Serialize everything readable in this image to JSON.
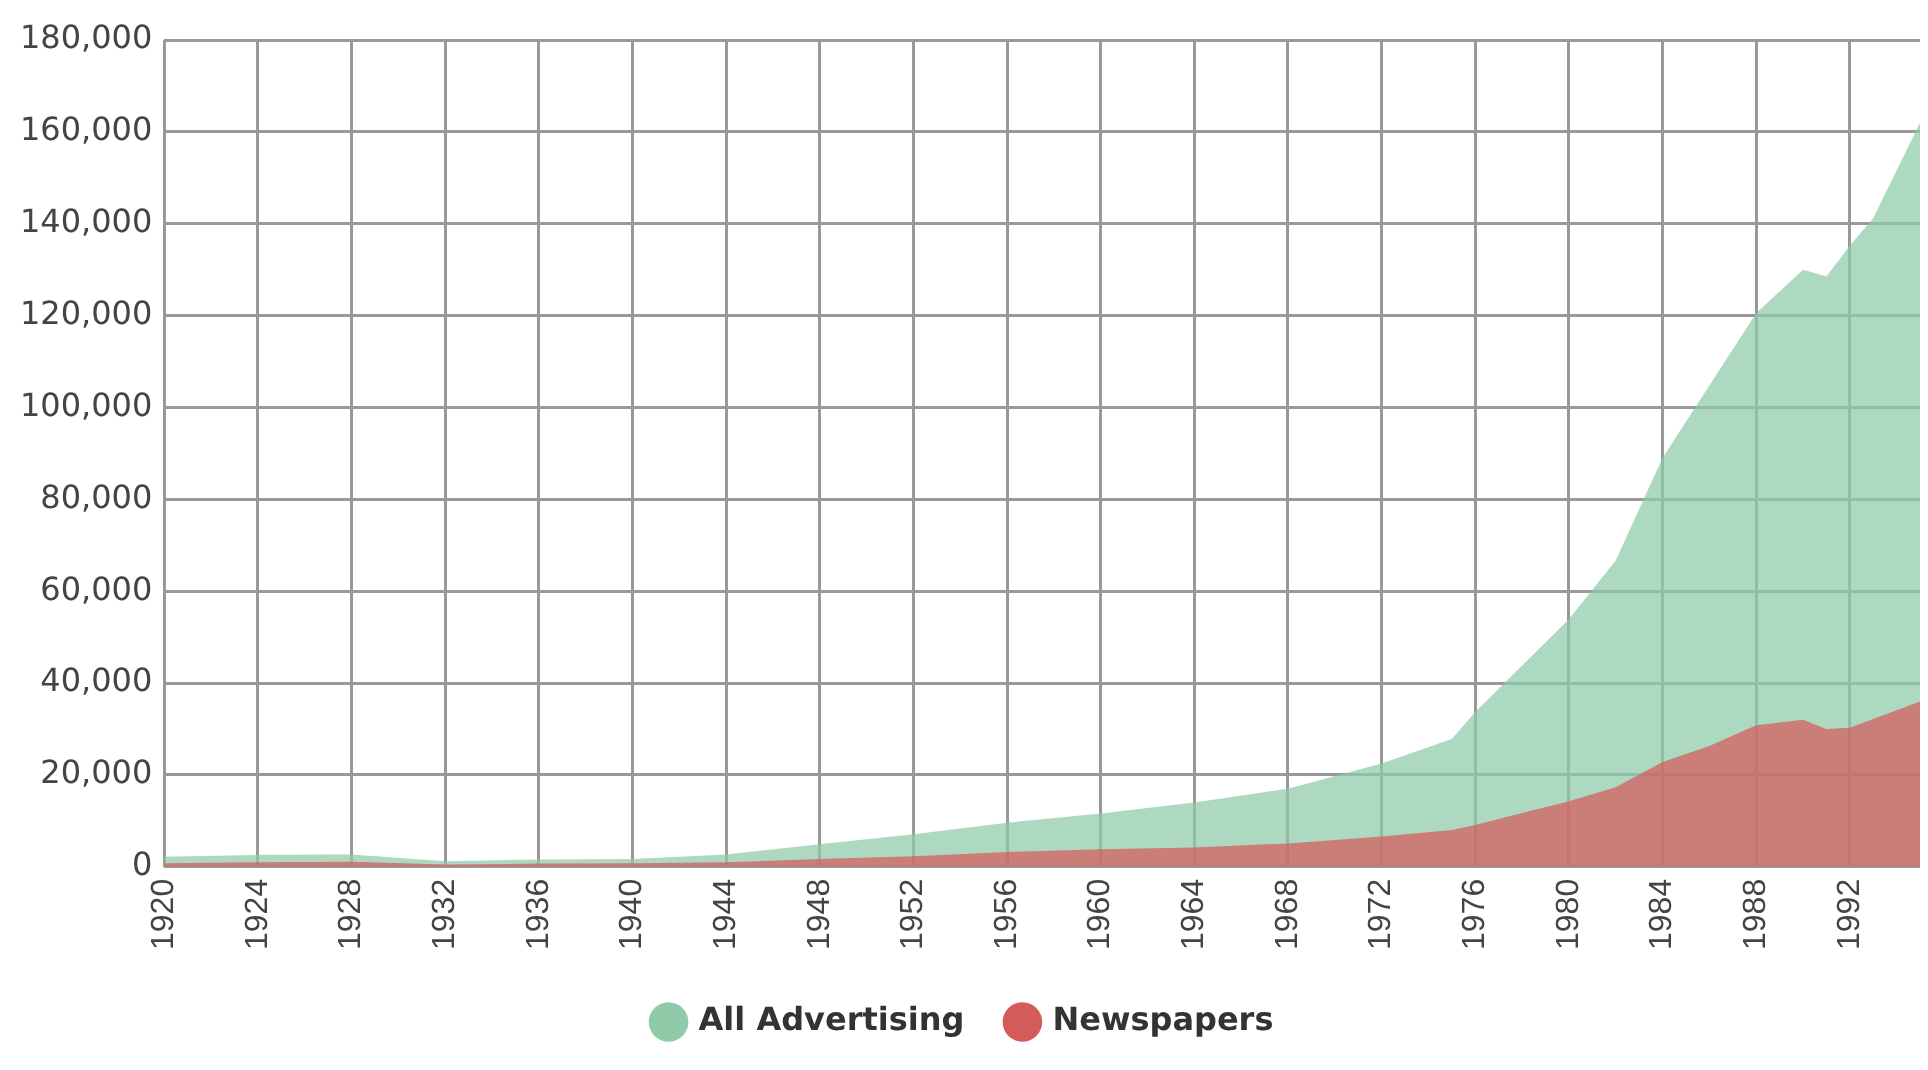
{
  "chart_data": {
    "type": "area",
    "legend": "bottom",
    "grid": true,
    "xlim": [
      1920,
      1995
    ],
    "xticks": [
      1920,
      1924,
      1928,
      1932,
      1936,
      1940,
      1944,
      1948,
      1952,
      1956,
      1960,
      1964,
      1968,
      1972,
      1976,
      1980,
      1984,
      1988,
      1992
    ],
    "ylim": [
      0,
      180000
    ],
    "yticks": [
      {
        "value": 0,
        "label": "0"
      },
      {
        "value": 20000,
        "label": "20,000"
      },
      {
        "value": 40000,
        "label": "40,000"
      },
      {
        "value": 60000,
        "label": "60,000"
      },
      {
        "value": 80000,
        "label": "80,000"
      },
      {
        "value": 100000,
        "label": "100,000"
      },
      {
        "value": 120000,
        "label": "120,000"
      },
      {
        "value": 140000,
        "label": "140,000"
      },
      {
        "value": 160000,
        "label": "160,000"
      },
      {
        "value": 180000,
        "label": "180,000"
      }
    ],
    "series": [
      {
        "name": "All Advertising",
        "color": "#8fcaa9",
        "x": [
          1920,
          1924,
          1928,
          1932,
          1936,
          1940,
          1944,
          1948,
          1952,
          1956,
          1960,
          1964,
          1968,
          1972,
          1975,
          1976,
          1980,
          1982,
          1984,
          1988,
          1990,
          1991,
          1992,
          1993,
          1995
        ],
        "values": [
          2200,
          2600,
          2700,
          1200,
          1600,
          1700,
          2700,
          4900,
          7100,
          9600,
          11600,
          14000,
          17000,
          22500,
          27800,
          33700,
          53900,
          66700,
          89000,
          120500,
          130000,
          128500,
          135200,
          141200,
          162000
        ]
      },
      {
        "name": "Newspapers",
        "color": "#d55a5a",
        "x": [
          1920,
          1924,
          1928,
          1932,
          1936,
          1940,
          1944,
          1948,
          1952,
          1956,
          1960,
          1964,
          1968,
          1972,
          1975,
          1976,
          1980,
          1982,
          1984,
          1986,
          1988,
          1990,
          1991,
          1992,
          1993,
          1995
        ],
        "values": [
          800,
          1000,
          1100,
          500,
          700,
          800,
          1000,
          1700,
          2300,
          3200,
          3800,
          4200,
          5100,
          6600,
          8000,
          9100,
          14300,
          17300,
          22800,
          26300,
          30800,
          32000,
          30000,
          30300,
          32200,
          36000
        ]
      }
    ]
  }
}
